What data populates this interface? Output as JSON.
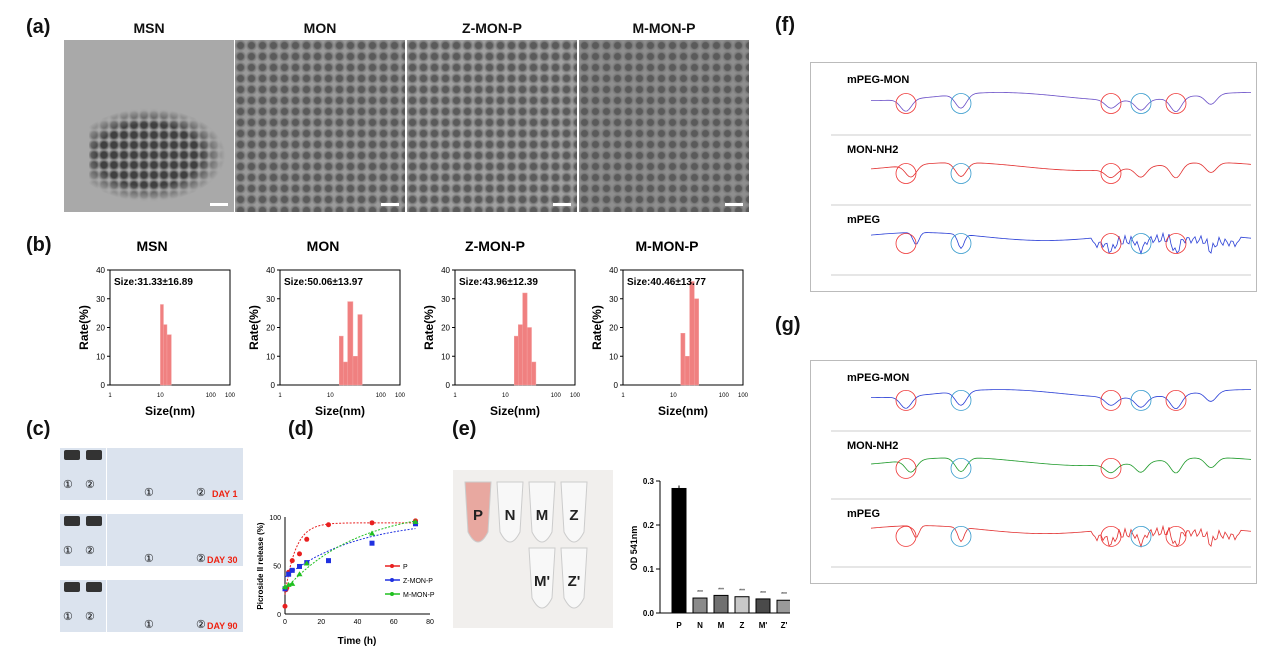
{
  "panels": {
    "a": "(a)",
    "b": "(b)",
    "c": "(c)",
    "d": "(d)",
    "e": "(e)",
    "f": "(f)",
    "g": "(g)"
  },
  "tem_titles": [
    "MSN",
    "MON",
    "Z-MON-P",
    "M-MON-P"
  ],
  "photos_c": {
    "days": [
      "DAY 1",
      "DAY 30",
      "DAY 90"
    ],
    "markers": [
      "①",
      "②"
    ]
  },
  "photo_e": {
    "tubes_top": [
      "P",
      "N",
      "M",
      "Z"
    ],
    "tubes_bottom": [
      "M'",
      "Z'"
    ]
  },
  "ftir": {
    "f": [
      "mPEG-MON",
      "MON-NH2",
      "mPEG"
    ],
    "g": [
      "mPEG-MON",
      "MON-NH2",
      "mPEG"
    ],
    "colors_f": [
      "#6a4fc7",
      "#e23030",
      "#2a3fd6"
    ],
    "colors_g": [
      "#2a3fd6",
      "#1e9a2a",
      "#e23030"
    ]
  },
  "chart_data": [
    {
      "type": "bar",
      "title": "MSN",
      "annotation": "Size:31.33±16.89",
      "xlabel": "Size(nm)",
      "ylabel": "Rate(%)",
      "xscale": "log",
      "xticks": [
        "1",
        "10",
        "100",
        "100"
      ],
      "ylim": [
        0,
        40
      ],
      "yticks": [
        "0",
        "10",
        "20",
        "30",
        "40"
      ],
      "color": "#f08080",
      "bins": [
        10,
        11.5,
        13.5
      ],
      "values": [
        28,
        21,
        17.5
      ]
    },
    {
      "type": "bar",
      "title": "MON",
      "annotation": "Size:50.06±13.97",
      "xlabel": "Size(nm)",
      "ylabel": "Rate(%)",
      "xscale": "log",
      "xticks": [
        "1",
        "10",
        "100",
        "100"
      ],
      "ylim": [
        0,
        40
      ],
      "yticks": [
        "0",
        "10",
        "20",
        "30",
        "40"
      ],
      "color": "#f08080",
      "bins": [
        15,
        18,
        22,
        28,
        35
      ],
      "values": [
        17,
        8,
        29,
        10,
        24.5
      ]
    },
    {
      "type": "bar",
      "title": "Z-MON-P",
      "annotation": "Size:43.96±12.39",
      "xlabel": "Size(nm)",
      "ylabel": "Rate(%)",
      "xscale": "log",
      "xticks": [
        "1",
        "10",
        "100",
        "100"
      ],
      "ylim": [
        0,
        40
      ],
      "yticks": [
        "0",
        "10",
        "20",
        "30",
        "40"
      ],
      "color": "#f08080",
      "bins": [
        15,
        18,
        22,
        27,
        33
      ],
      "values": [
        17,
        21,
        32,
        20,
        8
      ]
    },
    {
      "type": "bar",
      "title": "M-MON-P",
      "annotation": "Size:40.46±13.77",
      "xlabel": "Size(nm)",
      "ylabel": "Rate(%)",
      "xscale": "log",
      "xticks": [
        "1",
        "10",
        "100",
        "100"
      ],
      "ylim": [
        0,
        40
      ],
      "yticks": [
        "0",
        "10",
        "20",
        "30",
        "40"
      ],
      "color": "#f08080",
      "bins": [
        14,
        17,
        21,
        26
      ],
      "values": [
        18,
        10,
        36,
        30
      ]
    },
    {
      "type": "line",
      "xlabel": "Time (h)",
      "ylabel": "Picroside II release (%)",
      "xlim": [
        0,
        80
      ],
      "ylim": [
        0,
        100
      ],
      "xticks": [
        "0",
        "20",
        "40",
        "60",
        "80"
      ],
      "yticks": [
        "0",
        "50",
        "100"
      ],
      "legend": "right",
      "series": [
        {
          "name": "P",
          "color": "#e82020",
          "marker": "circle",
          "x": [
            0,
            0.5,
            1,
            2,
            4,
            8,
            12,
            24,
            48,
            72
          ],
          "y": [
            8,
            25,
            27,
            43,
            55,
            62,
            77,
            92,
            94,
            96
          ]
        },
        {
          "name": "Z-MON-P",
          "color": "#2030e0",
          "marker": "square",
          "x": [
            0,
            2,
            4,
            8,
            12,
            24,
            48,
            72
          ],
          "y": [
            26,
            41,
            45,
            49,
            53,
            55,
            73,
            93
          ]
        },
        {
          "name": "M-MON-P",
          "color": "#20c020",
          "marker": "triangle",
          "x": [
            0,
            2,
            4,
            8,
            12,
            48,
            72
          ],
          "y": [
            28,
            30,
            31,
            41,
            52,
            83,
            95
          ]
        }
      ]
    },
    {
      "type": "bar",
      "ylabel": "OD 541nm",
      "ylim": [
        0,
        0.3
      ],
      "yticks": [
        "0.0",
        "0.1",
        "0.2",
        "0.3"
      ],
      "categories": [
        "P",
        "N",
        "M",
        "Z",
        "M'",
        "Z'"
      ],
      "values": [
        0.283,
        0.034,
        0.04,
        0.037,
        0.032,
        0.029
      ],
      "colors": [
        "#000000",
        "#8a8a8a",
        "#707070",
        "#c8c8c8",
        "#4a4a4a",
        "#9a9a9a"
      ],
      "annotations": [
        "",
        "***",
        "***",
        "***",
        "***",
        "***"
      ]
    }
  ]
}
